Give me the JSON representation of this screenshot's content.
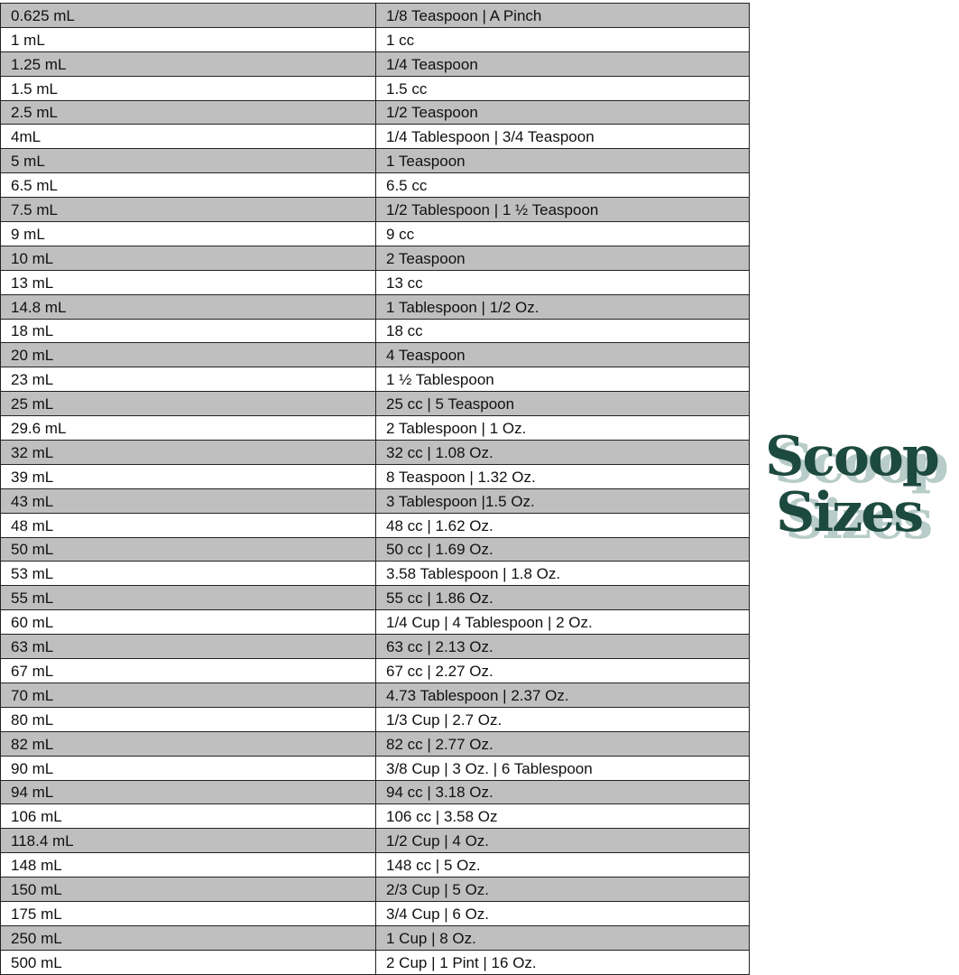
{
  "title": {
    "line1": "Scoop",
    "line2": "Sizes"
  },
  "colors": {
    "row_shade": "#bfbfbf",
    "logo": "#1d4a3e",
    "logo_shadow": "#b8ccc8"
  },
  "rows": [
    [
      "0.625 mL",
      "1/8 Teaspoon | A Pinch"
    ],
    [
      "1 mL",
      "1 cc"
    ],
    [
      "1.25 mL",
      "1/4 Teaspoon"
    ],
    [
      "1.5 mL",
      "1.5 cc"
    ],
    [
      "2.5 mL",
      "1/2 Teaspoon"
    ],
    [
      "4mL",
      "1/4 Tablespoon | 3/4 Teaspoon"
    ],
    [
      "5 mL",
      "1 Teaspoon"
    ],
    [
      "6.5 mL",
      "6.5 cc"
    ],
    [
      "7.5 mL",
      "1/2 Tablespoon | 1 ½ Teaspoon"
    ],
    [
      "9 mL",
      "9 cc"
    ],
    [
      "10 mL",
      "2 Teaspoon"
    ],
    [
      "13 mL",
      "13 cc"
    ],
    [
      "14.8 mL",
      "1 Tablespoon | 1/2 Oz."
    ],
    [
      "18 mL",
      "18 cc"
    ],
    [
      "20 mL",
      "4 Teaspoon"
    ],
    [
      "23 mL",
      "1 ½ Tablespoon"
    ],
    [
      "25 mL",
      "25 cc | 5 Teaspoon"
    ],
    [
      "29.6 mL",
      "2 Tablespoon | 1 Oz."
    ],
    [
      "32 mL",
      "32 cc | 1.08 Oz."
    ],
    [
      "39 mL",
      "8 Teaspoon | 1.32 Oz."
    ],
    [
      "43 mL",
      "3 Tablespoon |1.5 Oz."
    ],
    [
      "48 mL",
      "48 cc | 1.62 Oz."
    ],
    [
      "50 mL",
      "50 cc | 1.69 Oz."
    ],
    [
      "53 mL",
      "3.58 Tablespoon | 1.8 Oz."
    ],
    [
      "55 mL",
      "55 cc | 1.86 Oz."
    ],
    [
      "60 mL",
      "1/4 Cup | 4 Tablespoon | 2 Oz."
    ],
    [
      "63 mL",
      "63 cc | 2.13 Oz."
    ],
    [
      "67 mL",
      "67 cc | 2.27 Oz."
    ],
    [
      "70 mL",
      "4.73 Tablespoon | 2.37 Oz."
    ],
    [
      "80 mL",
      "1/3 Cup | 2.7 Oz."
    ],
    [
      "82 mL",
      "82 cc | 2.77 Oz."
    ],
    [
      "90 mL",
      "3/8 Cup | 3 Oz. | 6 Tablespoon"
    ],
    [
      "94 mL",
      "94 cc | 3.18 Oz."
    ],
    [
      "106 mL",
      "106 cc | 3.58 Oz"
    ],
    [
      "118.4 mL",
      "1/2 Cup | 4 Oz."
    ],
    [
      "148 mL",
      "148 cc | 5 Oz."
    ],
    [
      "150 mL",
      "2/3 Cup | 5 Oz."
    ],
    [
      "175 mL",
      "3/4 Cup | 6 Oz."
    ],
    [
      "250 mL",
      "1 Cup | 8 Oz."
    ],
    [
      "500 mL",
      "2 Cup | 1 Pint | 16 Oz."
    ]
  ]
}
